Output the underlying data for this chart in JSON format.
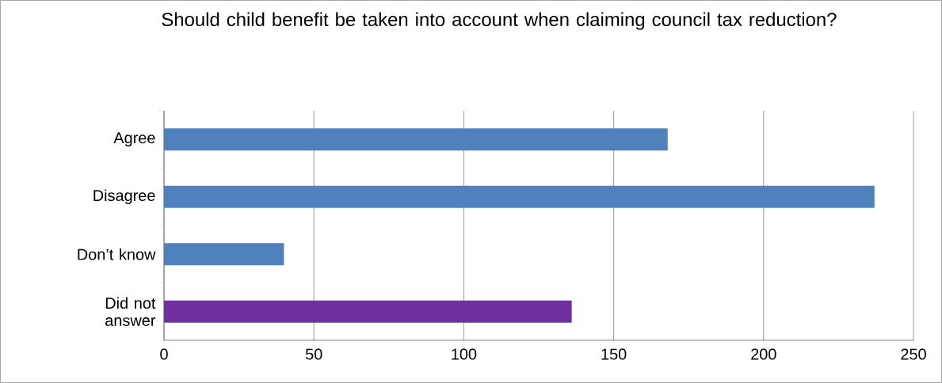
{
  "chart_data": {
    "type": "bar",
    "orientation": "horizontal",
    "title": "Should child benefit be taken into account when claiming council tax reduction?",
    "categories": [
      "Agree",
      "Disagree",
      "Don’t know",
      "Did not answer"
    ],
    "values": [
      168,
      237,
      40,
      136
    ],
    "colors": [
      "#4f81bd",
      "#4f81bd",
      "#4f81bd",
      "#7030a0"
    ],
    "xlim": [
      0,
      250
    ],
    "xticks": [
      0,
      50,
      100,
      150,
      200,
      250
    ],
    "grid": "x"
  }
}
